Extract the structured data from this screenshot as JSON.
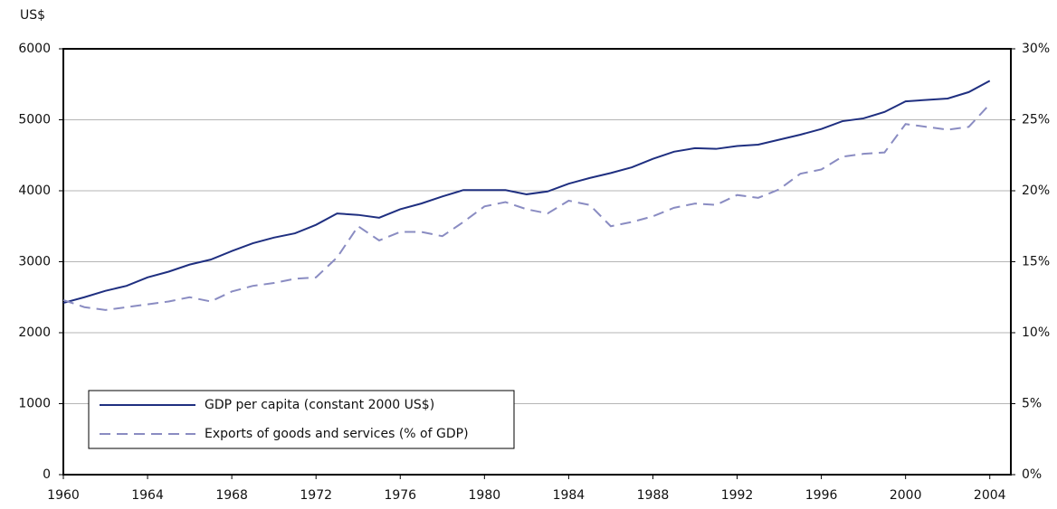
{
  "chart_data": {
    "type": "line",
    "y_label": "US$",
    "x": [
      1960,
      1961,
      1962,
      1963,
      1964,
      1965,
      1966,
      1967,
      1968,
      1969,
      1970,
      1971,
      1972,
      1973,
      1974,
      1975,
      1976,
      1977,
      1978,
      1979,
      1980,
      1981,
      1982,
      1983,
      1984,
      1985,
      1986,
      1987,
      1988,
      1989,
      1990,
      1991,
      1992,
      1993,
      1994,
      1995,
      1996,
      1997,
      1998,
      1999,
      2000,
      2001,
      2002,
      2003,
      2004
    ],
    "series": [
      {
        "name": "GDP per capita (constant 2000 US$)",
        "color": "#1f2f80",
        "dashed": false,
        "values": [
          2420,
          2500,
          2590,
          2660,
          2780,
          2860,
          2960,
          3030,
          3150,
          3260,
          3340,
          3400,
          3520,
          3680,
          3660,
          3620,
          3740,
          3820,
          3920,
          4010,
          4010,
          4010,
          3950,
          3990,
          4100,
          4180,
          4250,
          4330,
          4450,
          4550,
          4600,
          4590,
          4630,
          4650,
          4720,
          4790,
          4870,
          4980,
          5020,
          5110,
          5260,
          5280,
          5300,
          5390,
          5550
        ]
      },
      {
        "name": "Exports of goods and services (% of GDP)",
        "color": "#8a8cc2",
        "dashed": true,
        "axis": "y2",
        "values": [
          12.3,
          11.8,
          11.6,
          11.8,
          12.0,
          12.2,
          12.5,
          12.2,
          12.9,
          13.3,
          13.5,
          13.8,
          13.9,
          15.3,
          17.5,
          16.5,
          17.1,
          17.1,
          16.8,
          17.8,
          18.9,
          19.2,
          18.7,
          18.4,
          19.3,
          19.0,
          17.5,
          17.8,
          18.2,
          18.8,
          19.1,
          19.0,
          19.7,
          19.5,
          20.1,
          21.2,
          21.5,
          22.4,
          22.6,
          22.7,
          24.7,
          24.5,
          24.3,
          24.5,
          26.1
        ]
      }
    ],
    "xlim": [
      1960,
      2005
    ],
    "xticks": [
      1960,
      1964,
      1968,
      1972,
      1976,
      1980,
      1984,
      1988,
      1992,
      1996,
      2000,
      2004
    ],
    "ylim": [
      0,
      6000
    ],
    "yticks": [
      0,
      1000,
      2000,
      3000,
      4000,
      5000,
      6000
    ],
    "y2lim": [
      0,
      30
    ],
    "y2ticks": [
      {
        "value": 0,
        "label": "0%"
      },
      {
        "value": 5,
        "label": "5%"
      },
      {
        "value": 10,
        "label": "10%"
      },
      {
        "value": 15,
        "label": "15%"
      },
      {
        "value": 20,
        "label": "20%"
      },
      {
        "value": 25,
        "label": "25%"
      },
      {
        "value": 30,
        "label": "30%"
      }
    ],
    "grid": true,
    "legend": "lower left"
  }
}
